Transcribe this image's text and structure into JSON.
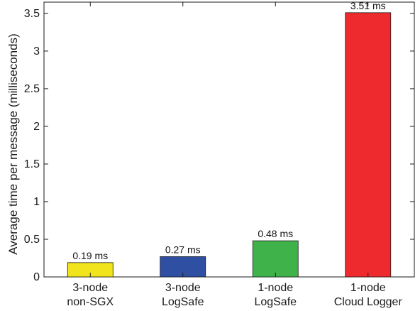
{
  "chart_data": {
    "type": "bar",
    "title": "",
    "xlabel": "",
    "ylabel": "Average time per message (milliseconds)",
    "ylim": [
      0,
      3.65
    ],
    "yticks": [
      0,
      0.5,
      1,
      1.5,
      2,
      2.5,
      3,
      3.5
    ],
    "ytick_labels": [
      "0",
      "0.5",
      "1",
      "1.5",
      "2",
      "2.5",
      "3",
      "3.5"
    ],
    "grid": false,
    "categories": [
      [
        "3-node",
        "non-SGX"
      ],
      [
        "3-node",
        "LogSafe"
      ],
      [
        "1-node",
        "LogSafe"
      ],
      [
        "1-node",
        "Cloud Logger"
      ]
    ],
    "values": [
      0.19,
      0.27,
      0.48,
      3.51
    ],
    "data_labels": [
      "0.19 ms",
      "0.27 ms",
      "0.48 ms",
      "3.51 ms"
    ],
    "colors": [
      "#f2e41c",
      "#2f4fa2",
      "#3fb34a",
      "#ee2a2f"
    ]
  }
}
